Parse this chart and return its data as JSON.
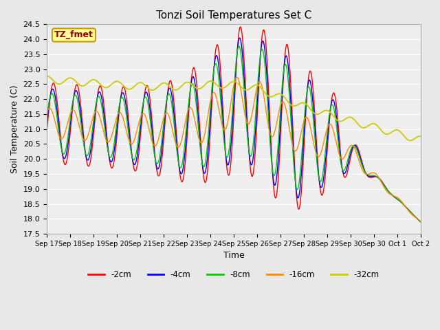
{
  "title": "Tonzi Soil Temperatures Set C",
  "xlabel": "Time",
  "ylabel": "Soil Temperature (C)",
  "ylim": [
    17.5,
    24.5
  ],
  "yticks": [
    17.5,
    18.0,
    18.5,
    19.0,
    19.5,
    20.0,
    20.5,
    21.0,
    21.5,
    22.0,
    22.5,
    23.0,
    23.5,
    24.0,
    24.5
  ],
  "colors": {
    "-2cm": "#ff0000",
    "-4cm": "#0000ff",
    "-8cm": "#00cc00",
    "-16cm": "#ff8800",
    "-32cm": "#cccc00"
  },
  "annotation_text": "TZ_fmet",
  "annotation_bg": "#ffff99",
  "annotation_border": "#cc9900",
  "background_color": "#e8e8e8",
  "plot_bg": "#eeeeee",
  "grid_color": "#ffffff",
  "legend_labels": [
    "-2cm",
    "-4cm",
    "-8cm",
    "-16cm",
    "-32cm"
  ],
  "figsize": [
    6.4,
    4.8
  ],
  "dpi": 100
}
